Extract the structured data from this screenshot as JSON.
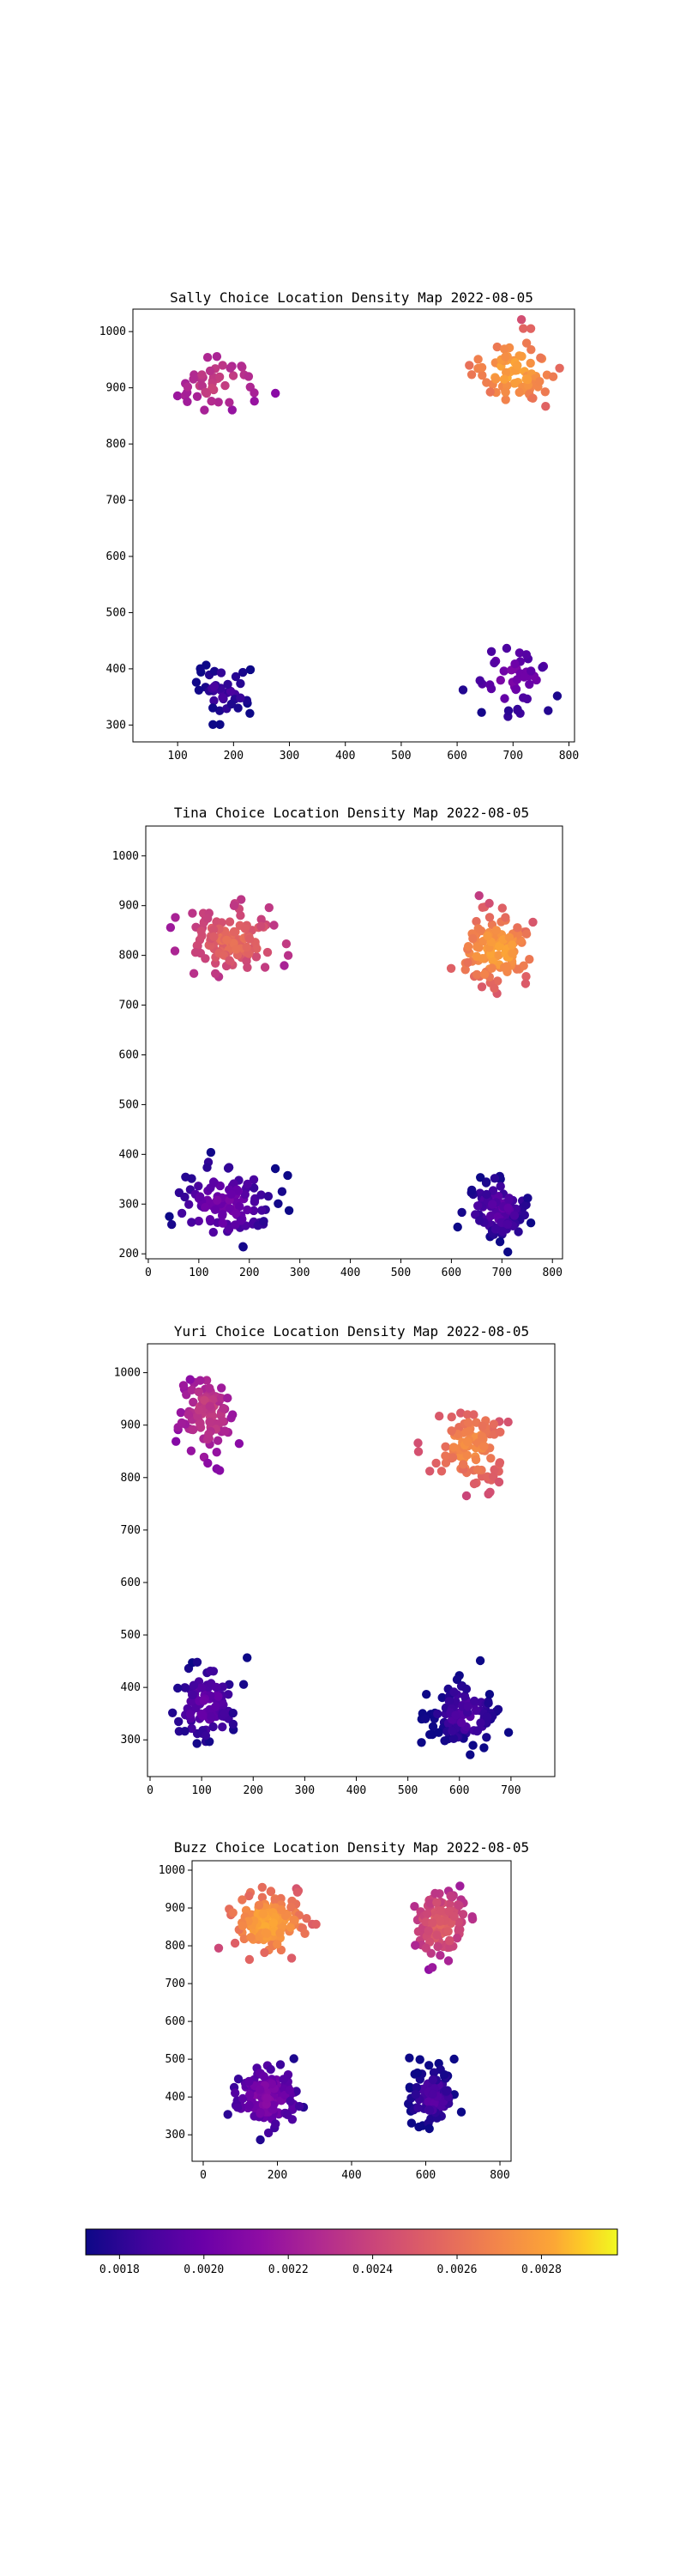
{
  "chart_data": [
    {
      "type": "scatter",
      "title": "Sally Choice Location Density Map 2022-08-05",
      "xlabel": "",
      "ylabel": "",
      "xlim": [
        20,
        810
      ],
      "ylim": [
        270,
        1040
      ],
      "xticks": [
        100,
        200,
        300,
        400,
        500,
        600,
        700,
        800
      ],
      "yticks": [
        300,
        400,
        500,
        600,
        700,
        800,
        900,
        1000
      ],
      "clusters": [
        {
          "cx": 175,
          "cy": 910,
          "n": 45,
          "sx": 40,
          "sy": 30,
          "density": 0.00232
        },
        {
          "cx": 700,
          "cy": 930,
          "n": 75,
          "sx": 40,
          "sy": 35,
          "density": 0.0027
        },
        {
          "cx": 185,
          "cy": 365,
          "n": 40,
          "sx": 35,
          "sy": 35,
          "density": 0.00184
        },
        {
          "cx": 700,
          "cy": 385,
          "n": 45,
          "sx": 40,
          "sy": 30,
          "density": 0.00202
        }
      ]
    },
    {
      "type": "scatter",
      "title": "Tina Choice Location Density Map 2022-08-05",
      "xlabel": "",
      "ylabel": "",
      "xlim": [
        -5,
        820
      ],
      "ylim": [
        190,
        1060
      ],
      "xticks": [
        0,
        100,
        200,
        300,
        400,
        500,
        600,
        700,
        800
      ],
      "yticks": [
        200,
        300,
        400,
        500,
        600,
        700,
        800,
        900,
        1000
      ],
      "clusters": [
        {
          "cx": 170,
          "cy": 830,
          "n": 120,
          "sx": 45,
          "sy": 35,
          "density": 0.0025
        },
        {
          "cx": 690,
          "cy": 810,
          "n": 120,
          "sx": 40,
          "sy": 35,
          "density": 0.0027
        },
        {
          "cx": 150,
          "cy": 300,
          "n": 110,
          "sx": 45,
          "sy": 40,
          "density": 0.002
        },
        {
          "cx": 690,
          "cy": 290,
          "n": 100,
          "sx": 35,
          "sy": 35,
          "density": 0.00192
        }
      ]
    },
    {
      "type": "scatter",
      "title": "Yuri Choice Location Density Map 2022-08-05",
      "xlabel": "",
      "ylabel": "",
      "xlim": [
        -5,
        785
      ],
      "ylim": [
        230,
        1055
      ],
      "xticks": [
        0,
        100,
        200,
        300,
        400,
        500,
        600,
        700
      ],
      "yticks": [
        300,
        400,
        500,
        600,
        700,
        800,
        900,
        1000
      ],
      "clusters": [
        {
          "cx": 110,
          "cy": 920,
          "n": 100,
          "sx": 30,
          "sy": 45,
          "density": 0.0023
        },
        {
          "cx": 620,
          "cy": 860,
          "n": 110,
          "sx": 40,
          "sy": 40,
          "density": 0.00262
        },
        {
          "cx": 110,
          "cy": 370,
          "n": 100,
          "sx": 35,
          "sy": 40,
          "density": 0.00195
        },
        {
          "cx": 610,
          "cy": 350,
          "n": 100,
          "sx": 40,
          "sy": 35,
          "density": 0.00188
        }
      ]
    },
    {
      "type": "scatter",
      "title": "Buzz Choice Location Density Map 2022-08-05",
      "xlabel": "",
      "ylabel": "",
      "xlim": [
        -30,
        830
      ],
      "ylim": [
        230,
        1025
      ],
      "xticks": [
        0,
        200,
        400,
        600,
        800
      ],
      "yticks": [
        300,
        400,
        500,
        600,
        700,
        800,
        900,
        1000
      ],
      "clusters": [
        {
          "cx": 175,
          "cy": 860,
          "n": 160,
          "sx": 50,
          "sy": 40,
          "density": 0.00272
        },
        {
          "cx": 640,
          "cy": 860,
          "n": 120,
          "sx": 40,
          "sy": 45,
          "density": 0.00245
        },
        {
          "cx": 170,
          "cy": 400,
          "n": 130,
          "sx": 45,
          "sy": 45,
          "density": 0.00205
        },
        {
          "cx": 620,
          "cy": 400,
          "n": 110,
          "sx": 35,
          "sy": 40,
          "density": 0.0019
        }
      ]
    }
  ],
  "colorbar": {
    "colormap": "plasma",
    "range": [
      0.00172,
      0.00298
    ],
    "ticks": [
      0.0018,
      0.002,
      0.0022,
      0.0024,
      0.0026,
      0.0028
    ],
    "tick_labels": [
      "0.0018",
      "0.0020",
      "0.0022",
      "0.0024",
      "0.0026",
      "0.0028"
    ]
  }
}
